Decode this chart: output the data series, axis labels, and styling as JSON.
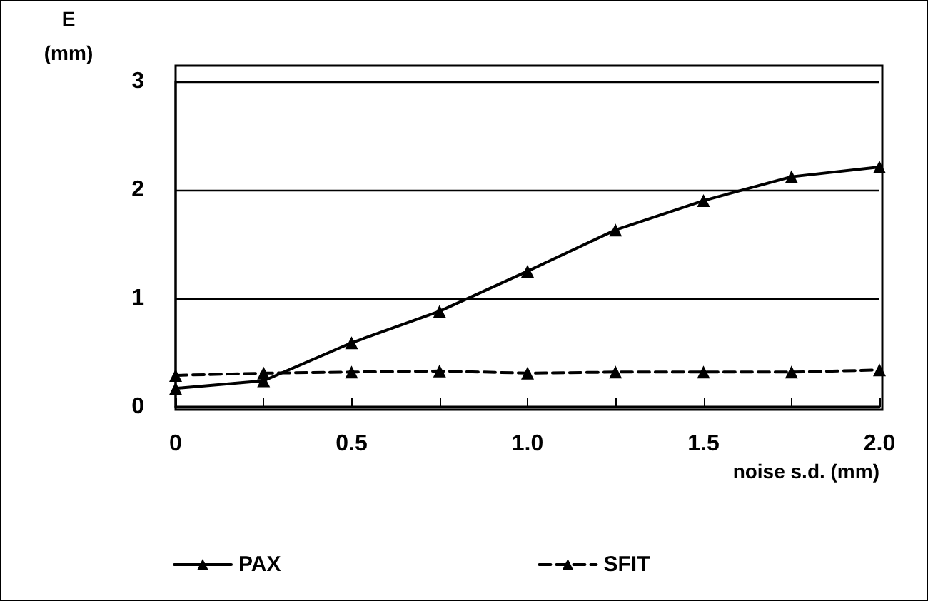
{
  "chart_data": {
    "type": "line",
    "ylabel": "E\n(mm)",
    "xlabel": "noise s.d. (mm)",
    "x": [
      0,
      0.25,
      0.5,
      0.75,
      1.0,
      1.25,
      1.5,
      1.75,
      2.0
    ],
    "series": [
      {
        "name": "PAX",
        "color": "#000000",
        "line_style": "solid",
        "values": [
          0.17,
          0.24,
          0.59,
          0.88,
          1.25,
          1.63,
          1.9,
          2.12,
          2.21
        ]
      },
      {
        "name": "SFIT",
        "color": "#000000",
        "line_style": "dashed",
        "values": [
          0.29,
          0.31,
          0.32,
          0.33,
          0.31,
          0.32,
          0.32,
          0.32,
          0.34
        ]
      }
    ],
    "xlim": [
      0,
      2.0
    ],
    "ylim": [
      0,
      3
    ],
    "xticks": [
      {
        "value": 0,
        "label": "0"
      },
      {
        "value": 0.25,
        "label": null
      },
      {
        "value": 0.5,
        "label": "0.5"
      },
      {
        "value": 0.75,
        "label": null
      },
      {
        "value": 1.0,
        "label": "1.0"
      },
      {
        "value": 1.25,
        "label": null
      },
      {
        "value": 1.5,
        "label": "1.5"
      },
      {
        "value": 1.75,
        "label": null
      },
      {
        "value": 2.0,
        "label": "2.0"
      }
    ],
    "yticks": [
      0,
      1,
      2,
      3
    ],
    "grid": "y",
    "marker": "triangle",
    "legend": "bottom left"
  }
}
